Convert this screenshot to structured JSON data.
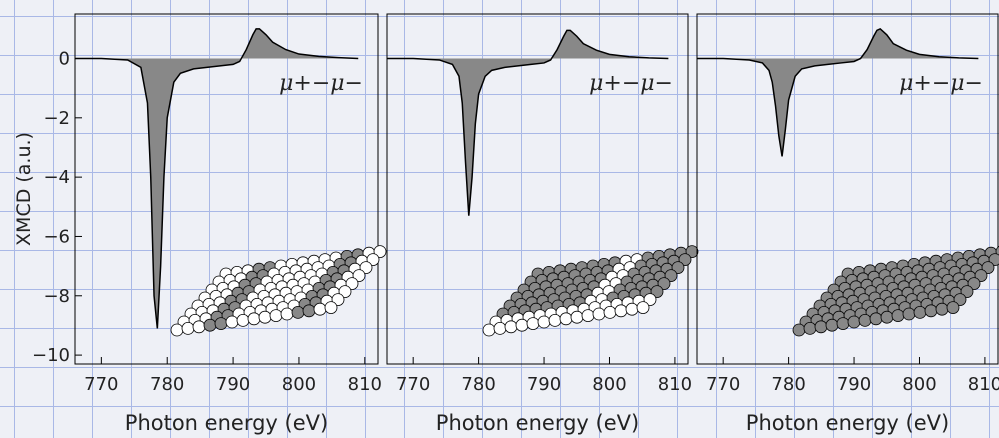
{
  "chart_data": [
    {
      "type": "area",
      "y_label": "XMCD (a.u.)",
      "x_label": "Photon energy (eV)",
      "annotation": "μ+−μ−",
      "xlim": [
        766,
        812
      ],
      "ylim": [
        -10.3,
        1.5
      ],
      "xticks": [
        770,
        780,
        790,
        800,
        810
      ],
      "yticks": [
        {
          "value": 0,
          "label": "0"
        },
        {
          "value": -2,
          "label": "−2"
        },
        {
          "value": -4,
          "label": "−4"
        },
        {
          "value": -6,
          "label": "−6"
        },
        {
          "value": -8,
          "label": "−8"
        },
        {
          "value": -10,
          "label": "−10"
        }
      ],
      "x": [
        766,
        770,
        774,
        776,
        777,
        777.5,
        778,
        778.5,
        779,
        779.5,
        780,
        781,
        782,
        784,
        786,
        788,
        790,
        791,
        792,
        793,
        793.5,
        794,
        795,
        796,
        798,
        800,
        803,
        806,
        809
      ],
      "series": [
        {
          "color": "#888888",
          "values": [
            0,
            0,
            -0.05,
            -0.3,
            -1.5,
            -4,
            -8,
            -9.1,
            -7,
            -4,
            -2,
            -0.8,
            -0.5,
            -0.35,
            -0.3,
            -0.25,
            -0.2,
            -0.1,
            0.3,
            0.8,
            1.0,
            1.0,
            0.8,
            0.55,
            0.3,
            0.15,
            0.07,
            0.03,
            0
          ]
        }
      ]
    },
    {
      "type": "area",
      "x_label": "Photon energy (eV)",
      "annotation": "μ+−μ−",
      "xlim": [
        766,
        812
      ],
      "ylim": [
        -10.3,
        1.5
      ],
      "xticks": [
        770,
        780,
        790,
        800,
        810
      ],
      "x": [
        766,
        770,
        774,
        776,
        777,
        777.5,
        778,
        778.5,
        779,
        779.5,
        780,
        781,
        782,
        784,
        786,
        788,
        790,
        791,
        792,
        793,
        793.5,
        794,
        795,
        796,
        798,
        800,
        803,
        806,
        809
      ],
      "series": [
        {
          "color": "#888888",
          "values": [
            0,
            0,
            -0.05,
            -0.2,
            -0.6,
            -1.5,
            -3.5,
            -5.3,
            -4,
            -2.2,
            -1.2,
            -0.6,
            -0.4,
            -0.3,
            -0.25,
            -0.2,
            -0.15,
            -0.05,
            0.3,
            0.75,
            0.95,
            0.95,
            0.75,
            0.5,
            0.28,
            0.14,
            0.06,
            0.02,
            0
          ]
        }
      ]
    },
    {
      "type": "area",
      "x_label": "Photon energy (eV)",
      "annotation": "μ+−μ−",
      "xlim": [
        766,
        812
      ],
      "ylim": [
        -10.3,
        1.5
      ],
      "xticks": [
        770,
        780,
        790,
        800,
        810
      ],
      "x": [
        766,
        770,
        774,
        776,
        777,
        777.5,
        778,
        778.5,
        779,
        779.5,
        780,
        781,
        782,
        784,
        786,
        788,
        790,
        791,
        792,
        793,
        793.5,
        794,
        795,
        796,
        798,
        800,
        803,
        806,
        809
      ],
      "series": [
        {
          "color": "#888888",
          "values": [
            0,
            0,
            -0.05,
            -0.15,
            -0.4,
            -0.8,
            -1.6,
            -2.6,
            -3.3,
            -2.4,
            -1.4,
            -0.6,
            -0.35,
            -0.25,
            -0.2,
            -0.15,
            -0.1,
            0,
            0.3,
            0.75,
            0.95,
            1.0,
            0.8,
            0.5,
            0.28,
            0.14,
            0.06,
            0.02,
            0
          ]
        }
      ]
    }
  ]
}
